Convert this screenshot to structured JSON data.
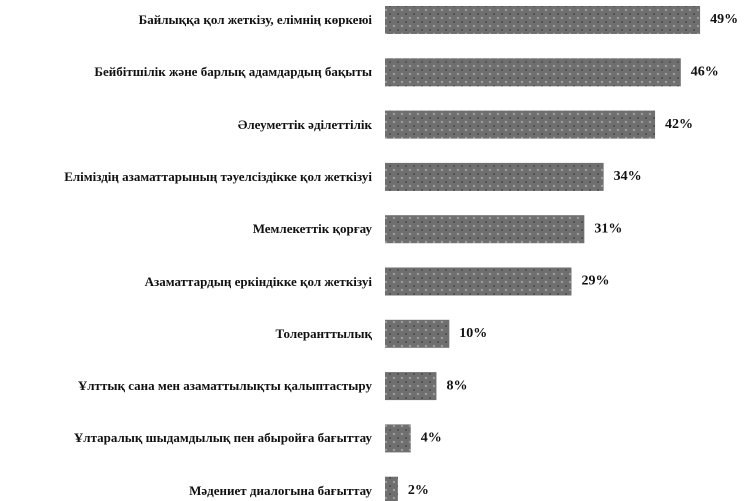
{
  "chart_data": {
    "type": "hbar",
    "categories": [
      "Байлыққа қол жеткізу, елімнің көркеюі",
      "Бейбітшілік және барлық адамдардың бақыты",
      "Әлеуметтік әділеттілік",
      "Еліміздің азаматтарының тәуелсіздікке қол жеткізуі",
      "Мемлекеттік қорғау",
      "Азаматтардың еркіндікке қол жеткізуі",
      "Толеранттылық",
      "Ұлттық сана мен азаматтылықты қалыптастыру",
      "Ұлтаралық шыдамдылық пен абыройға бағыттау",
      "Мәдениет диалогына бағыттау"
    ],
    "values": [
      49,
      46,
      42,
      34,
      31,
      29,
      10,
      8,
      4,
      2
    ],
    "value_labels": [
      "49%",
      "46%",
      "42%",
      "34%",
      "31%",
      "29%",
      "10%",
      "8%",
      "4%",
      "2%"
    ],
    "color": "#6f6f6f"
  }
}
